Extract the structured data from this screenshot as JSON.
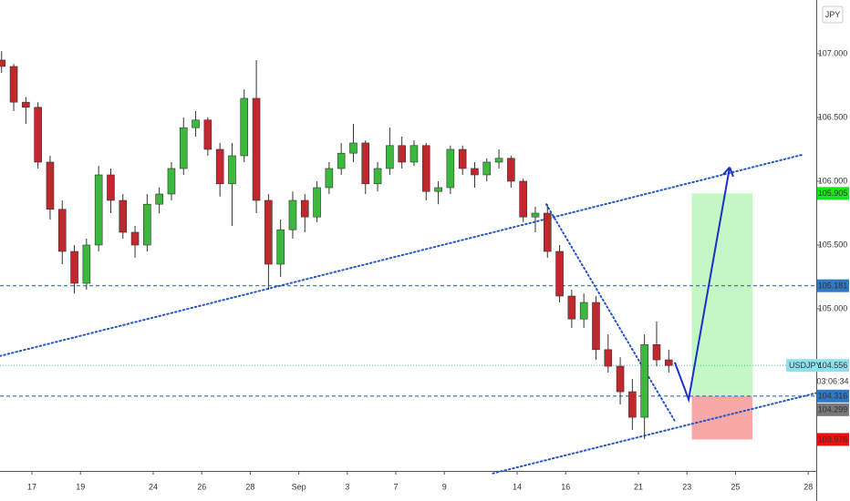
{
  "chart_data": {
    "type": "candlestick",
    "currency": "JPY",
    "x": [
      -1.25,
      -0.75,
      -0.25,
      0.25,
      0.75,
      1.25,
      1.75,
      2.25,
      2.75,
      3.25,
      3.75,
      4.25,
      4.75,
      5.25,
      5.75,
      6.25,
      6.75,
      7.25,
      7.75,
      8.25,
      8.75,
      9.25,
      9.75,
      10.25,
      10.75,
      11.25,
      11.75,
      12.25,
      12.75,
      13.25,
      13.75,
      14.25,
      14.75,
      15.25,
      15.75,
      16.25,
      16.75,
      17.25,
      17.75,
      18.25,
      18.75,
      19.25,
      19.75,
      20.25,
      20.75,
      21.25,
      21.75,
      22.25,
      22.75,
      23.25,
      23.75,
      24.25,
      24.75,
      25.25,
      25.75,
      26.25
    ],
    "candles": [
      [
        106.95,
        107.02,
        106.85,
        106.9
      ],
      [
        106.9,
        106.92,
        106.55,
        106.62
      ],
      [
        106.62,
        106.66,
        106.45,
        106.58
      ],
      [
        106.58,
        106.62,
        106.1,
        106.15
      ],
      [
        106.15,
        106.2,
        105.7,
        105.78
      ],
      [
        105.78,
        105.85,
        105.35,
        105.45
      ],
      [
        105.45,
        105.5,
        105.12,
        105.2
      ],
      [
        105.2,
        105.55,
        105.15,
        105.5
      ],
      [
        105.5,
        106.12,
        105.45,
        106.05
      ],
      [
        106.05,
        106.1,
        105.75,
        105.85
      ],
      [
        105.85,
        105.9,
        105.55,
        105.6
      ],
      [
        105.6,
        105.65,
        105.4,
        105.5
      ],
      [
        105.5,
        105.9,
        105.45,
        105.82
      ],
      [
        105.82,
        105.95,
        105.75,
        105.9
      ],
      [
        105.9,
        106.15,
        105.85,
        106.1
      ],
      [
        106.1,
        106.5,
        106.05,
        106.42
      ],
      [
        106.42,
        106.55,
        106.35,
        106.48
      ],
      [
        106.48,
        106.5,
        106.2,
        106.25
      ],
      [
        106.25,
        106.3,
        105.88,
        105.98
      ],
      [
        105.98,
        106.3,
        105.65,
        106.2
      ],
      [
        106.2,
        106.72,
        106.15,
        106.65
      ],
      [
        106.65,
        106.95,
        105.75,
        105.85
      ],
      [
        105.85,
        105.9,
        105.15,
        105.35
      ],
      [
        105.35,
        105.7,
        105.25,
        105.62
      ],
      [
        105.62,
        105.92,
        105.55,
        105.85
      ],
      [
        105.85,
        105.9,
        105.6,
        105.72
      ],
      [
        105.72,
        106.0,
        105.68,
        105.95
      ],
      [
        105.95,
        106.15,
        105.9,
        106.1
      ],
      [
        106.1,
        106.3,
        106.05,
        106.22
      ],
      [
        106.22,
        106.45,
        106.15,
        106.3
      ],
      [
        106.3,
        106.32,
        105.9,
        105.98
      ],
      [
        105.98,
        106.15,
        105.92,
        106.1
      ],
      [
        106.1,
        106.42,
        106.05,
        106.28
      ],
      [
        106.28,
        106.35,
        106.1,
        106.15
      ],
      [
        106.15,
        106.32,
        106.12,
        106.28
      ],
      [
        106.28,
        106.3,
        105.85,
        105.92
      ],
      [
        105.92,
        106.0,
        105.82,
        105.95
      ],
      [
        105.95,
        106.28,
        105.9,
        106.25
      ],
      [
        106.25,
        106.28,
        106.05,
        106.1
      ],
      [
        106.1,
        106.15,
        105.95,
        106.05
      ],
      [
        106.05,
        106.18,
        106.0,
        106.15
      ],
      [
        106.15,
        106.25,
        106.1,
        106.18
      ],
      [
        106.18,
        106.2,
        105.95,
        106.0
      ],
      [
        106.0,
        106.02,
        105.68,
        105.72
      ],
      [
        105.72,
        105.8,
        105.6,
        105.75
      ],
      [
        105.75,
        105.82,
        105.4,
        105.45
      ],
      [
        105.45,
        105.5,
        105.05,
        105.1
      ],
      [
        105.1,
        105.15,
        104.85,
        104.92
      ],
      [
        104.92,
        105.12,
        104.85,
        105.05
      ],
      [
        105.05,
        105.1,
        104.6,
        104.68
      ],
      [
        104.68,
        104.8,
        104.5,
        104.55
      ],
      [
        104.55,
        104.62,
        104.25,
        104.35
      ],
      [
        104.35,
        104.45,
        104.05,
        104.15
      ],
      [
        104.15,
        104.8,
        103.98,
        104.72
      ],
      [
        104.72,
        104.9,
        104.55,
        104.6
      ],
      [
        104.6,
        104.68,
        104.5,
        104.556
      ]
    ],
    "up_color": "#3cb83c",
    "down_color": "#c0282d",
    "xlim": [
      -1.316,
      32.33
    ],
    "ylim": [
      103.729,
      107.421
    ],
    "xticks": [
      {
        "value": 0,
        "label": "17"
      },
      {
        "value": 2,
        "label": "19"
      },
      {
        "value": 5,
        "label": "24"
      },
      {
        "value": 7,
        "label": "26"
      },
      {
        "value": 9,
        "label": "28"
      },
      {
        "value": 11,
        "label": "Sep"
      },
      {
        "value": 13,
        "label": "3"
      },
      {
        "value": 15,
        "label": "7"
      },
      {
        "value": 17,
        "label": "9"
      },
      {
        "value": 20,
        "label": "14"
      },
      {
        "value": 22,
        "label": "16"
      },
      {
        "value": 25,
        "label": "21"
      },
      {
        "value": 27,
        "label": "23"
      },
      {
        "value": 29,
        "label": "25"
      },
      {
        "value": 32,
        "label": "28"
      }
    ],
    "yticks": [
      {
        "value": 107,
        "label": "107.000"
      },
      {
        "value": 106.5,
        "label": "106.500"
      },
      {
        "value": 106,
        "label": "106.000"
      },
      {
        "value": 105.5,
        "label": "105.500"
      },
      {
        "value": 105,
        "label": "105.000"
      }
    ],
    "hlines": [
      {
        "value": 105.181,
        "color": "#2f6fc4",
        "style": "dashed"
      },
      {
        "value": 104.316,
        "color": "#2f6fc4",
        "style": "dashed"
      },
      {
        "value": 104.556,
        "color": "#4cc9a8",
        "style": "dotted"
      }
    ],
    "trendlines": [
      {
        "points": [
          [
            -1.316,
            104.63
          ],
          [
            31.8,
            106.21
          ]
        ],
        "color": "#2457c5"
      },
      {
        "points": [
          [
            19,
            103.71
          ],
          [
            32.33,
            104.34
          ]
        ],
        "color": "#2457c5"
      },
      {
        "points": [
          [
            21.2,
            105.82
          ],
          [
            26.5,
            104.12
          ]
        ],
        "color": "#2457c5"
      }
    ],
    "position": {
      "x": [
        27.2,
        29.7
      ],
      "target": 105.905,
      "entry": 104.316,
      "stop": 103.976
    },
    "arrow": {
      "points": [
        [
          26.5,
          104.58
        ],
        [
          27.07,
          104.29
        ],
        [
          28.76,
          106.11
        ]
      ],
      "color": "#1a2fcc"
    },
    "price_labels": [
      {
        "value": 105.905,
        "color": "#19e619",
        "text_color": "#000"
      },
      {
        "value": 105.181,
        "color": "#2f78c4",
        "text_color": "#fff"
      },
      {
        "name": "USDJPY",
        "value": 104.556,
        "color": "#8fe0ef",
        "text_color": "#000"
      },
      {
        "value": 104.316,
        "color": "#2f78c4",
        "text_color": "#fff"
      },
      {
        "value": 104.299,
        "color": "#787878",
        "text_color": "#fff"
      },
      {
        "value": 103.976,
        "color": "#e8130f",
        "text_color": "#fff"
      }
    ],
    "countdown": "03:06:34"
  }
}
